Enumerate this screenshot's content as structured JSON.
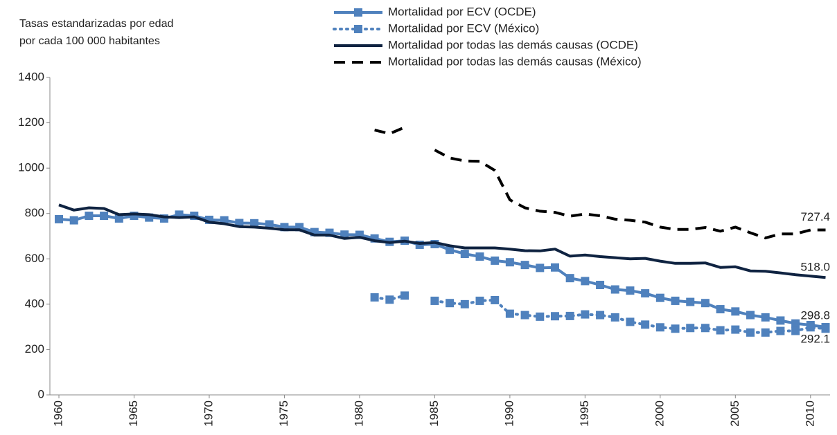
{
  "chart_data": {
    "type": "line",
    "y_label": [
      "Tasas estandarizadas por edad",
      "por cada 100 000 habitantes"
    ],
    "x": [
      1960,
      1961,
      1962,
      1963,
      1964,
      1965,
      1966,
      1967,
      1968,
      1969,
      1970,
      1971,
      1972,
      1973,
      1974,
      1975,
      1976,
      1977,
      1978,
      1979,
      1980,
      1981,
      1982,
      1983,
      1984,
      1985,
      1986,
      1987,
      1988,
      1989,
      1990,
      1991,
      1992,
      1993,
      1994,
      1995,
      1996,
      1997,
      1998,
      1999,
      2000,
      2001,
      2002,
      2003,
      2004,
      2005,
      2006,
      2007,
      2008,
      2009,
      2010,
      2011
    ],
    "xlim": [
      1959.4,
      2011.3
    ],
    "xticks": [
      1960,
      1965,
      1970,
      1975,
      1980,
      1985,
      1990,
      1995,
      2000,
      2005,
      2010
    ],
    "ylim": [
      0,
      1400
    ],
    "yticks": [
      0,
      200,
      400,
      600,
      800,
      1000,
      1200,
      1400
    ],
    "grid": false,
    "legend": "top",
    "series": [
      {
        "name": "Mortalidad por ECV (OCDE)",
        "color": "#4f81bd",
        "style": "solid",
        "marker": "square",
        "values": [
          775,
          770,
          790,
          790,
          778,
          790,
          782,
          778,
          795,
          790,
          772,
          770,
          758,
          757,
          752,
          740,
          740,
          718,
          715,
          707,
          706,
          690,
          675,
          680,
          662,
          665,
          640,
          622,
          610,
          592,
          585,
          573,
          560,
          562,
          515,
          502,
          485,
          465,
          460,
          448,
          428,
          415,
          410,
          405,
          378,
          368,
          352,
          342,
          328,
          315,
          308,
          298.8
        ],
        "value_labels": [
          null,
          null,
          null,
          null,
          null,
          null,
          null,
          null,
          null,
          null,
          null,
          null,
          null,
          null,
          null,
          null,
          null,
          null,
          null,
          null,
          null,
          null,
          null,
          null,
          null,
          null,
          null,
          null,
          null,
          null,
          null,
          null,
          null,
          null,
          null,
          null,
          null,
          null,
          null,
          null,
          null,
          null,
          null,
          null,
          null,
          null,
          null,
          null,
          null,
          null,
          null,
          "298.8"
        ]
      },
      {
        "name": "Mortalidad por ECV (México)",
        "color": "#4f81bd",
        "style": "dotted",
        "marker": "square",
        "values": [
          null,
          null,
          null,
          null,
          null,
          null,
          null,
          null,
          null,
          null,
          null,
          null,
          null,
          null,
          null,
          null,
          null,
          null,
          null,
          null,
          null,
          430,
          420,
          438,
          null,
          415,
          405,
          400,
          415,
          418,
          358,
          352,
          345,
          347,
          348,
          355,
          352,
          342,
          322,
          310,
          298,
          292,
          295,
          295,
          285,
          288,
          275,
          275,
          282,
          282,
          298,
          292.1
        ],
        "value_labels": [
          null,
          null,
          null,
          null,
          null,
          null,
          null,
          null,
          null,
          null,
          null,
          null,
          null,
          null,
          null,
          null,
          null,
          null,
          null,
          null,
          null,
          null,
          null,
          null,
          null,
          null,
          null,
          null,
          null,
          null,
          null,
          null,
          null,
          null,
          null,
          null,
          null,
          null,
          null,
          null,
          null,
          null,
          null,
          null,
          null,
          null,
          null,
          null,
          null,
          null,
          null,
          "292.1"
        ]
      },
      {
        "name": "Mortalidad por todas las demás causas (OCDE)",
        "color": "#0f2341",
        "style": "solid",
        "marker": null,
        "values": [
          838,
          815,
          825,
          822,
          795,
          798,
          795,
          785,
          782,
          785,
          762,
          755,
          742,
          740,
          735,
          728,
          728,
          705,
          705,
          690,
          695,
          680,
          672,
          678,
          668,
          672,
          658,
          648,
          648,
          648,
          643,
          636,
          635,
          643,
          612,
          617,
          610,
          605,
          600,
          602,
          590,
          580,
          580,
          582,
          562,
          565,
          547,
          545,
          538,
          530,
          524,
          518.0
        ],
        "value_labels": [
          null,
          null,
          null,
          null,
          null,
          null,
          null,
          null,
          null,
          null,
          null,
          null,
          null,
          null,
          null,
          null,
          null,
          null,
          null,
          null,
          null,
          null,
          null,
          null,
          null,
          null,
          null,
          null,
          null,
          null,
          null,
          null,
          null,
          null,
          null,
          null,
          null,
          null,
          null,
          null,
          null,
          null,
          null,
          null,
          null,
          null,
          null,
          null,
          null,
          null,
          null,
          "518.0"
        ]
      },
      {
        "name": "Mortalidad por todas las demás causas (México)",
        "color": "#000000",
        "style": "dashed",
        "marker": null,
        "values": [
          null,
          null,
          null,
          null,
          null,
          null,
          null,
          null,
          null,
          null,
          null,
          null,
          null,
          null,
          null,
          null,
          null,
          null,
          null,
          null,
          null,
          1168,
          1152,
          1180,
          null,
          1080,
          1045,
          1032,
          1030,
          990,
          860,
          825,
          810,
          805,
          788,
          798,
          790,
          775,
          770,
          762,
          740,
          730,
          730,
          738,
          722,
          740,
          715,
          692,
          710,
          710,
          727,
          727.4
        ],
        "value_labels": [
          null,
          null,
          null,
          null,
          null,
          null,
          null,
          null,
          null,
          null,
          null,
          null,
          null,
          null,
          null,
          null,
          null,
          null,
          null,
          null,
          null,
          null,
          null,
          null,
          null,
          null,
          null,
          null,
          null,
          null,
          null,
          null,
          null,
          null,
          null,
          null,
          null,
          null,
          null,
          null,
          null,
          null,
          null,
          null,
          null,
          null,
          null,
          null,
          null,
          null,
          null,
          "727.4"
        ]
      }
    ]
  }
}
